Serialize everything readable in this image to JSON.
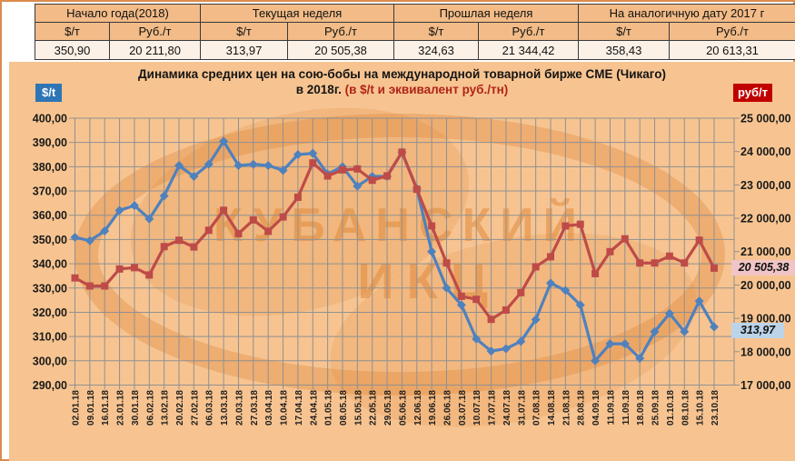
{
  "summary_table": {
    "usd_header": "$/т",
    "rub_header": "Руб./т",
    "groups": [
      {
        "title": "Начало года(2018)",
        "usd": "350,90",
        "rub": "20 211,80"
      },
      {
        "title": "Текущая неделя",
        "usd": "313,97",
        "rub": "20 505,38"
      },
      {
        "title": "Прошлая неделя",
        "usd": "324,63",
        "rub": "21 344,42"
      },
      {
        "title": "На аналогичную дату 2017 г",
        "usd": "358,43",
        "rub": "20 613,31"
      }
    ]
  },
  "chart": {
    "title_line1": "Динамика средних цен на сою-бобы на международной товарной бирже CME (Чикаго)",
    "title_line2_black": "в 2018г.",
    "title_line2_red": "(в $/t и эквивалент руб./тн)",
    "left_axis_label": "$/t",
    "right_axis_label": "руб/т",
    "callout_rub": "20 505,38",
    "callout_usd": "313,97",
    "watermark_line1": "КУБАНСКИЙ",
    "watermark_line2": "ИКЦ",
    "colors": {
      "usd_series": "#4F81BD",
      "rub_series": "#BE4B48",
      "panel_bg": "#F7C491",
      "grid": "#909090",
      "left_badge_bg": "#2E75B6",
      "right_badge_bg": "#C00000",
      "callout_rub_bg": "#F1C5C5",
      "callout_usd_bg": "#BCD4EA",
      "watermark": "#E08A3C"
    }
  },
  "chart_data": {
    "type": "line",
    "title": "Динамика средних цен на сою-бобы на международной товарной бирже CME (Чикаго) в 2018г. (в $/t и эквивалент руб./тн)",
    "categories": [
      "02.01.18",
      "09.01.18",
      "16.01.18",
      "23.01.18",
      "30.01.18",
      "06.02.18",
      "13.02.18",
      "20.02.18",
      "27.02.18",
      "06.03.18",
      "13.03.18",
      "20.03.18",
      "27.03.18",
      "03.04.18",
      "10.04.18",
      "17.04.18",
      "24.04.18",
      "01.05.18",
      "08.05.18",
      "15.05.18",
      "22.05.18",
      "29.05.18",
      "05.06.18",
      "12.06.18",
      "19.06.18",
      "26.06.18",
      "03.07.18",
      "10.07.18",
      "17.07.18",
      "24.07.18",
      "31.07.18",
      "07.08.18",
      "14.08.18",
      "21.08.18",
      "28.08.18",
      "04.09.18",
      "11.09.18",
      "11.09.18",
      "18.09.18",
      "25.09.18",
      "01.10.18",
      "08.10.18",
      "15.10.18",
      "23.10.18"
    ],
    "series": [
      {
        "name": "$/t",
        "axis": "left",
        "marker": "diamond",
        "color": "#4F81BD",
        "values": [
          350.9,
          349.5,
          353.5,
          362,
          364,
          358.5,
          368,
          380.5,
          376,
          381,
          390.5,
          380.5,
          381,
          380.5,
          378.5,
          385,
          385.5,
          377,
          380,
          372,
          376,
          376,
          386,
          371,
          345,
          330,
          323,
          309,
          304,
          305,
          308,
          317,
          332,
          329,
          323,
          300,
          307,
          307,
          301,
          312,
          319.5,
          312,
          324.63,
          313.97
        ]
      },
      {
        "name": "руб/т",
        "axis": "right",
        "marker": "square",
        "color": "#BE4B48",
        "values": [
          20211.8,
          19970,
          19970,
          20480,
          20520,
          20300,
          21150,
          21340,
          21140,
          21640,
          22240,
          21540,
          21950,
          21610,
          22040,
          22630,
          23660,
          23270,
          23450,
          23480,
          23140,
          23270,
          23980,
          22870,
          21770,
          20660,
          19660,
          19570,
          18970,
          19250,
          19770,
          20545,
          20845,
          21770,
          21820,
          20340,
          21000,
          21385,
          20660,
          20660,
          20865,
          20660,
          21344.42,
          20505.38
        ]
      }
    ],
    "left_axis": {
      "min": 290,
      "max": 400,
      "step": 10,
      "ticks": [
        "400,00",
        "390,00",
        "380,00",
        "370,00",
        "360,00",
        "350,00",
        "340,00",
        "330,00",
        "320,00",
        "310,00",
        "300,00",
        "290,00"
      ]
    },
    "right_axis": {
      "min": 17000,
      "max": 25000,
      "step": 1000,
      "ticks": [
        "25 000,00",
        "24 000,00",
        "23 000,00",
        "22 000,00",
        "21 000,00",
        "20 000,00",
        "19 000,00",
        "18 000,00",
        "17 000,00"
      ]
    },
    "grid": true,
    "legend_position": "none"
  }
}
